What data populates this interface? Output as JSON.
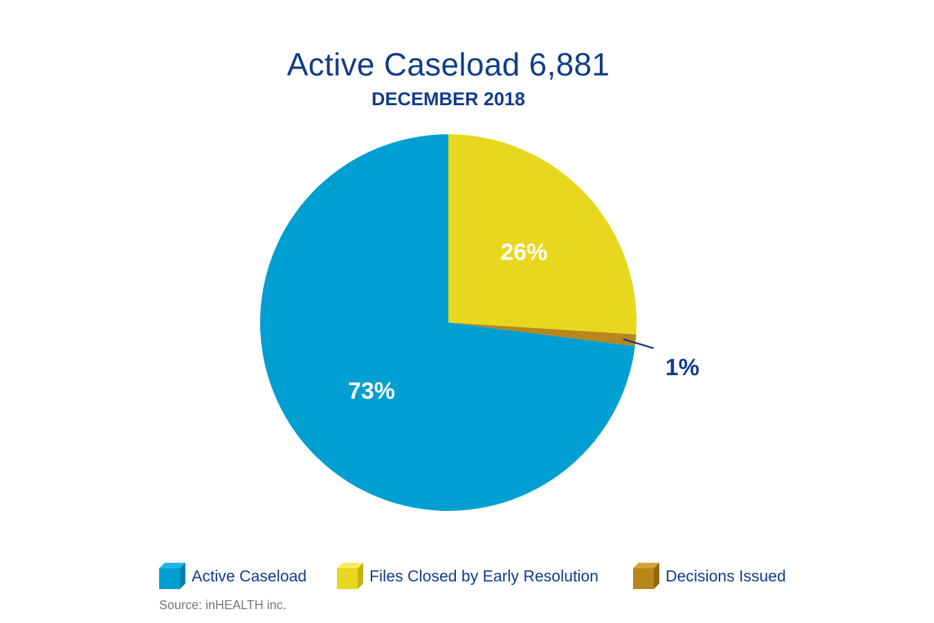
{
  "chart_data": {
    "type": "pie",
    "title": "Active Caseload 6,881",
    "subtitle": "DECEMBER 2018",
    "slices": [
      {
        "label": "Files Closed by Early Resolution",
        "value": 26,
        "value_label": "26%",
        "color": "#e8d71f"
      },
      {
        "label": "Decisions Issued",
        "value": 1,
        "value_label": "1%",
        "color": "#b8861a"
      },
      {
        "label": "Active Caseload",
        "value": 73,
        "value_label": "73%",
        "color": "#009fd1"
      }
    ],
    "legend": {
      "placement": "bottom",
      "entries": [
        {
          "label": "Active Caseload",
          "color": "#009fd1"
        },
        {
          "label": "Files Closed by Early Resolution",
          "color": "#e8d71f"
        },
        {
          "label": "Decisions Issued",
          "color": "#b8861a"
        }
      ]
    },
    "source": "Source: inHEALTH inc."
  }
}
